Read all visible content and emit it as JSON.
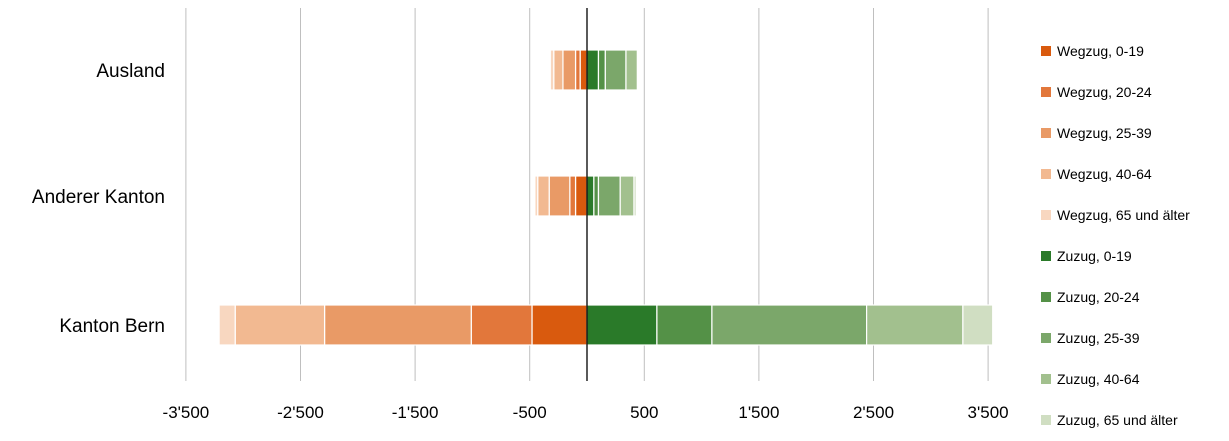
{
  "chart_data": {
    "type": "bar",
    "orientation": "horizontal",
    "stacked": true,
    "categories": [
      "Ausland",
      "Anderer Kanton",
      "Kanton Bern"
    ],
    "x_ticks": [
      -3500,
      -2500,
      -1500,
      -500,
      500,
      1500,
      2500,
      3500
    ],
    "x_tick_labels": [
      "-3'500",
      "-2'500",
      "-1'500",
      "-500",
      "500",
      "1'500",
      "2'500",
      "3'500"
    ],
    "xlim": [
      -3500,
      3500
    ],
    "grid": true,
    "legend_position": "right",
    "series": [
      {
        "name": "Wegzug, 0-19",
        "color": "#d95a0e",
        "values": [
          -60,
          -100,
          -480
        ]
      },
      {
        "name": "Wegzug, 20-24",
        "color": "#e2773b",
        "values": [
          -40,
          -50,
          -530
        ]
      },
      {
        "name": "Wegzug, 25-39",
        "color": "#e99a66",
        "values": [
          -110,
          -180,
          -1280
        ]
      },
      {
        "name": "Wegzug, 40-64",
        "color": "#f2b991",
        "values": [
          -80,
          -100,
          -780
        ]
      },
      {
        "name": "Wegzug, 65 und älter",
        "color": "#f8d7c0",
        "values": [
          -30,
          -25,
          -140
        ]
      },
      {
        "name": "Zuzug, 0-19",
        "color": "#2a7a29",
        "values": [
          100,
          60,
          610
        ]
      },
      {
        "name": "Zuzug, 20-24",
        "color": "#549147",
        "values": [
          60,
          40,
          480
        ]
      },
      {
        "name": "Zuzug, 25-39",
        "color": "#7ba76a",
        "values": [
          180,
          190,
          1350
        ]
      },
      {
        "name": "Zuzug, 40-64",
        "color": "#a2c08e",
        "values": [
          100,
          120,
          840
        ]
      },
      {
        "name": "Zuzug, 65 und älter",
        "color": "#d0dec2",
        "values": [
          10,
          20,
          260
        ]
      }
    ]
  }
}
